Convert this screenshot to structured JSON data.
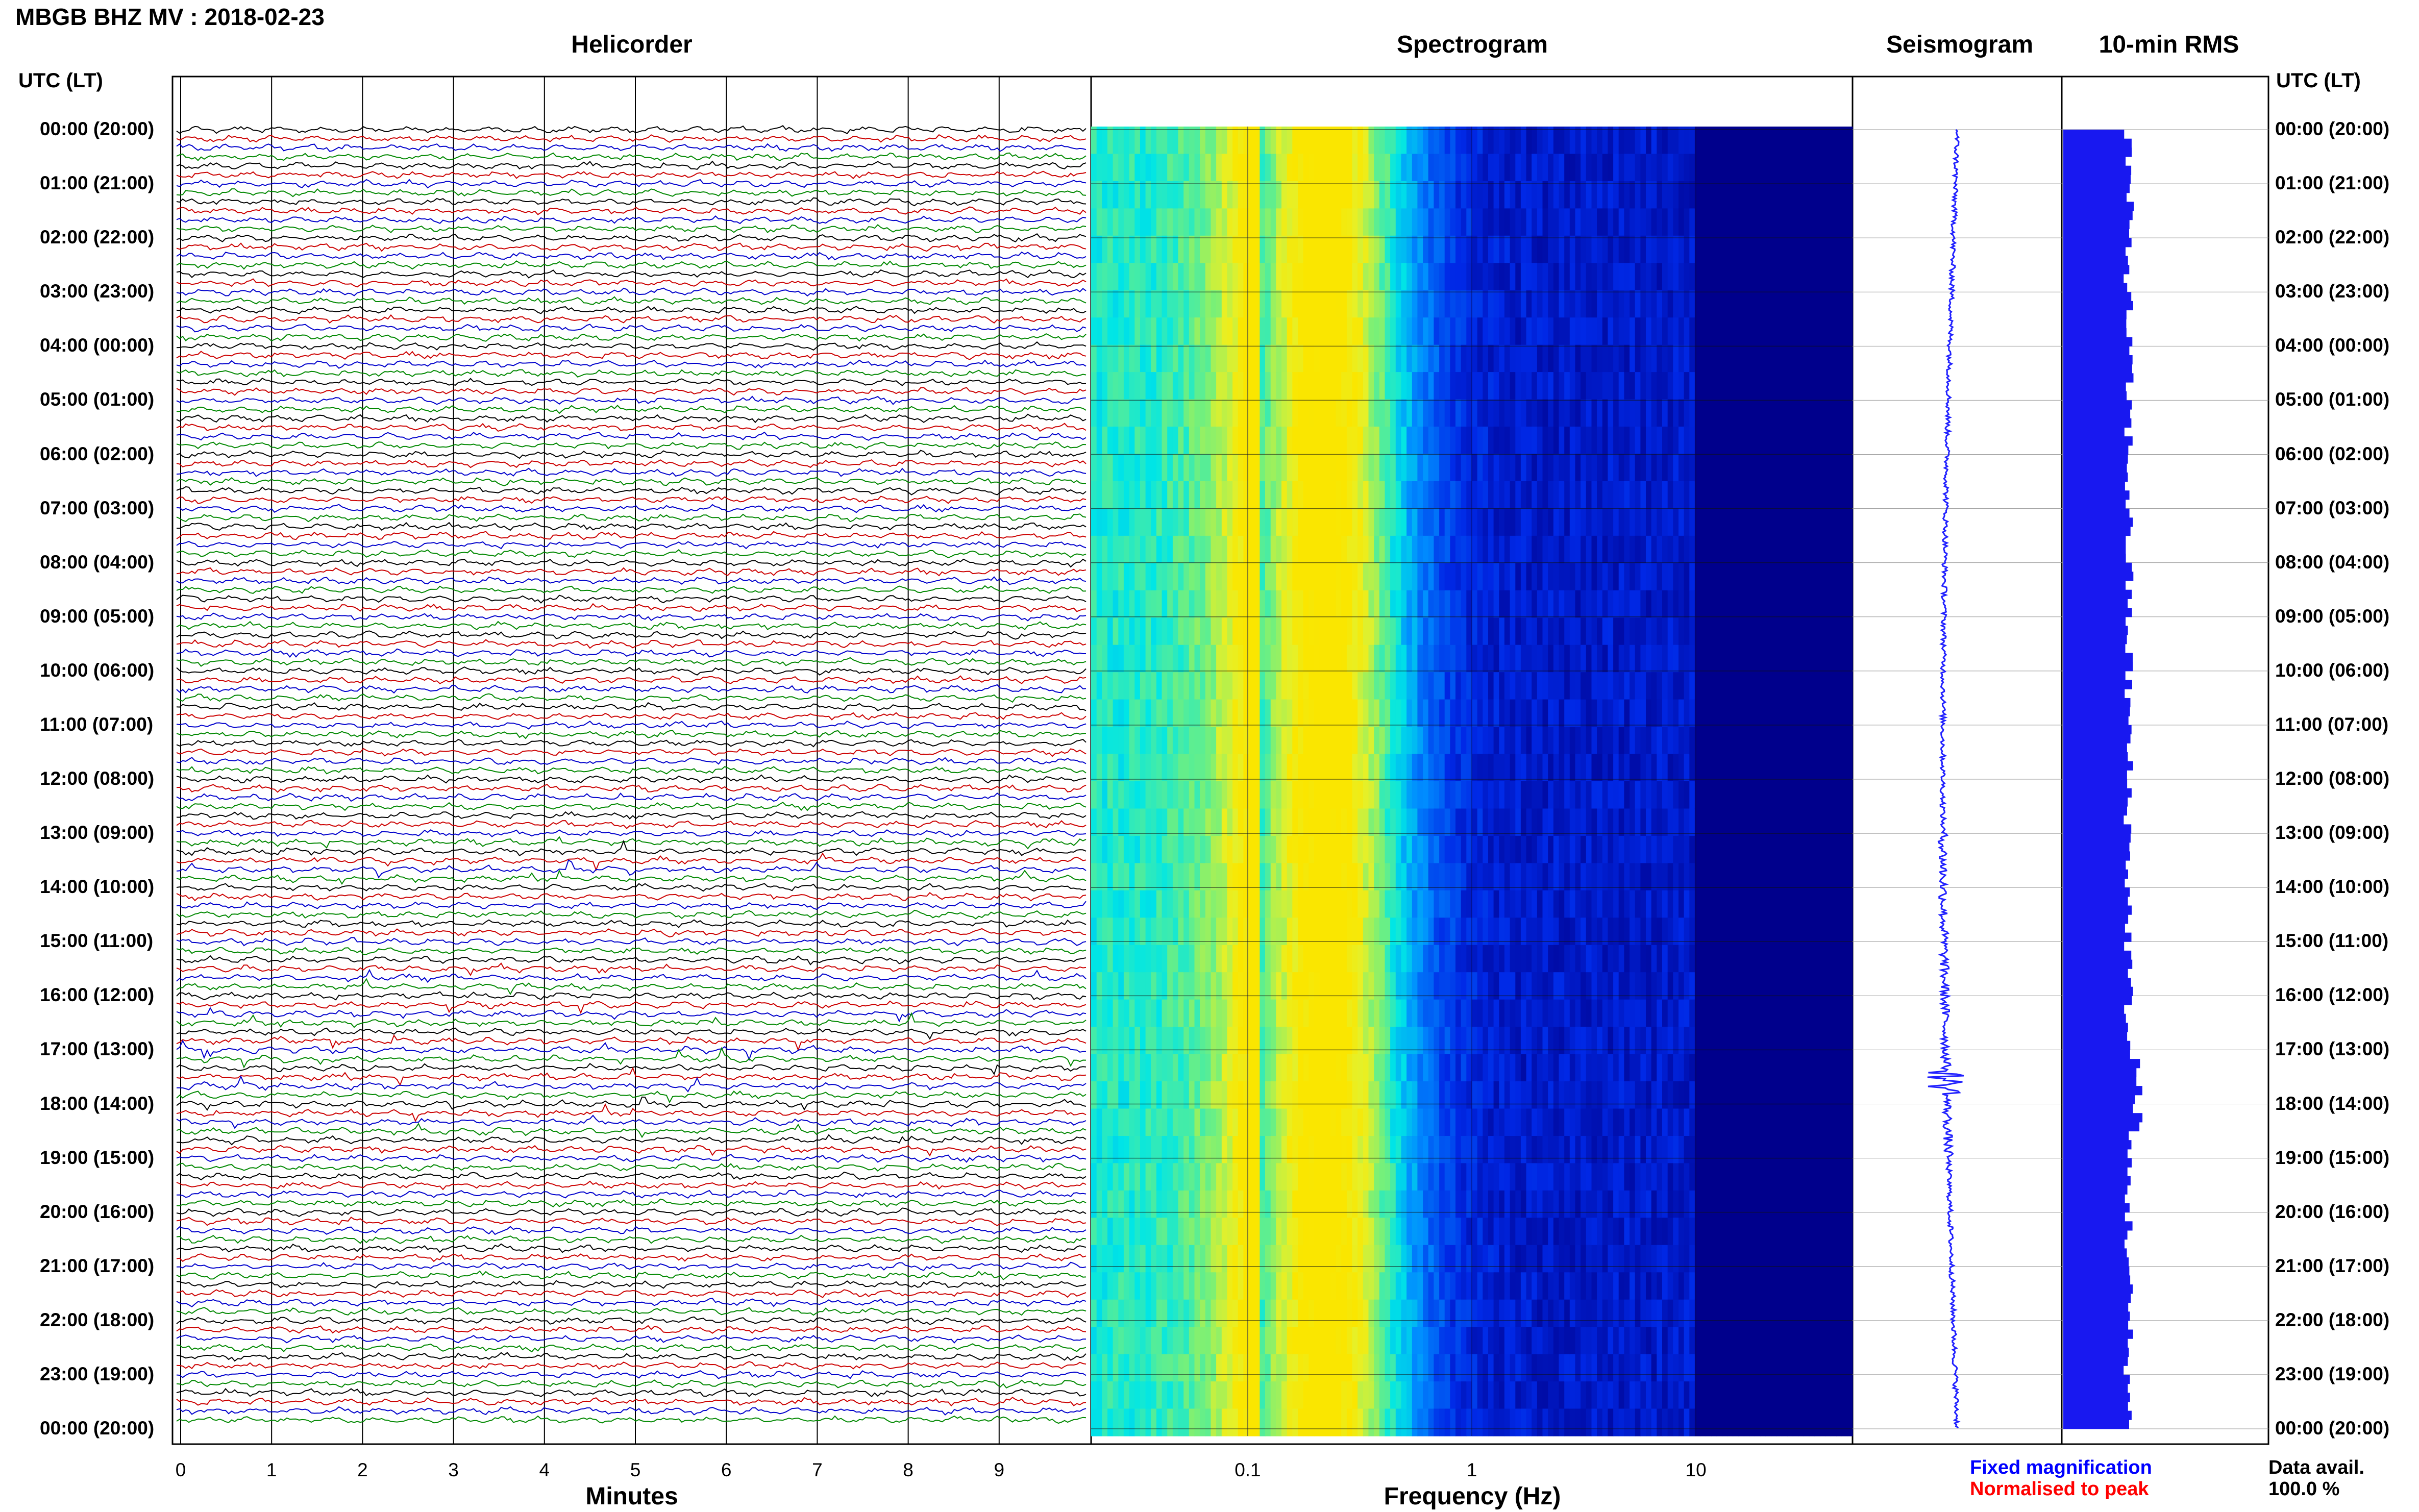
{
  "header": {
    "station": "MBGB BHZ MV : 2018-02-23"
  },
  "panels": {
    "helicorder": "Helicorder",
    "spectrogram": "Spectrogram",
    "seismogram": "Seismogram",
    "rms": "10-min RMS"
  },
  "utc_heading": "UTC (LT)",
  "hour_labels": [
    "00:00 (20:00)",
    "01:00 (21:00)",
    "02:00 (22:00)",
    "03:00 (23:00)",
    "04:00 (00:00)",
    "05:00 (01:00)",
    "06:00 (02:00)",
    "07:00 (03:00)",
    "08:00 (04:00)",
    "09:00 (05:00)",
    "10:00 (06:00)",
    "11:00 (07:00)",
    "12:00 (08:00)",
    "13:00 (09:00)",
    "14:00 (10:00)",
    "15:00 (11:00)",
    "16:00 (12:00)",
    "17:00 (13:00)",
    "18:00 (14:00)",
    "19:00 (15:00)",
    "20:00 (16:00)",
    "21:00 (17:00)",
    "22:00 (18:00)",
    "23:00 (19:00)",
    "00:00 (20:00)"
  ],
  "x_axes": {
    "minutes": {
      "title": "Minutes",
      "ticks": [
        "0",
        "1",
        "2",
        "3",
        "4",
        "5",
        "6",
        "7",
        "8",
        "9"
      ]
    },
    "frequency": {
      "title": "Frequency (Hz)",
      "ticks": [
        "0.1",
        "1",
        "10"
      ],
      "scale": "log"
    }
  },
  "legend": {
    "fixed": "Fixed magnification",
    "normalised": "Normalised to peak"
  },
  "availability": {
    "label": "Data avail.",
    "value": "100.0 %"
  },
  "colors": {
    "trace_cycle": [
      "#000000",
      "#cc0000",
      "#0000cc",
      "#008800"
    ],
    "rms_bar": "#1818f0",
    "seismogram": "#2020ff"
  },
  "chart_data": {
    "type": "heatmap",
    "title": "MBGB BHZ MV : 2018-02-23",
    "helicorder": {
      "rows": 144,
      "minutes_per_row": 10,
      "xlim": [
        0,
        10
      ],
      "event_hours_utc": [
        13.5,
        15.8,
        16.6,
        17.4,
        18.4
      ]
    },
    "spectrogram": {
      "xlim_hz": [
        0.02,
        50
      ],
      "peak_band_hz": [
        0.15,
        0.4
      ],
      "hours_utc": [
        0,
        24
      ]
    },
    "rms_10min": {
      "count": 144,
      "range": "roughly uniform, slightly higher 17:00-18:00"
    }
  }
}
